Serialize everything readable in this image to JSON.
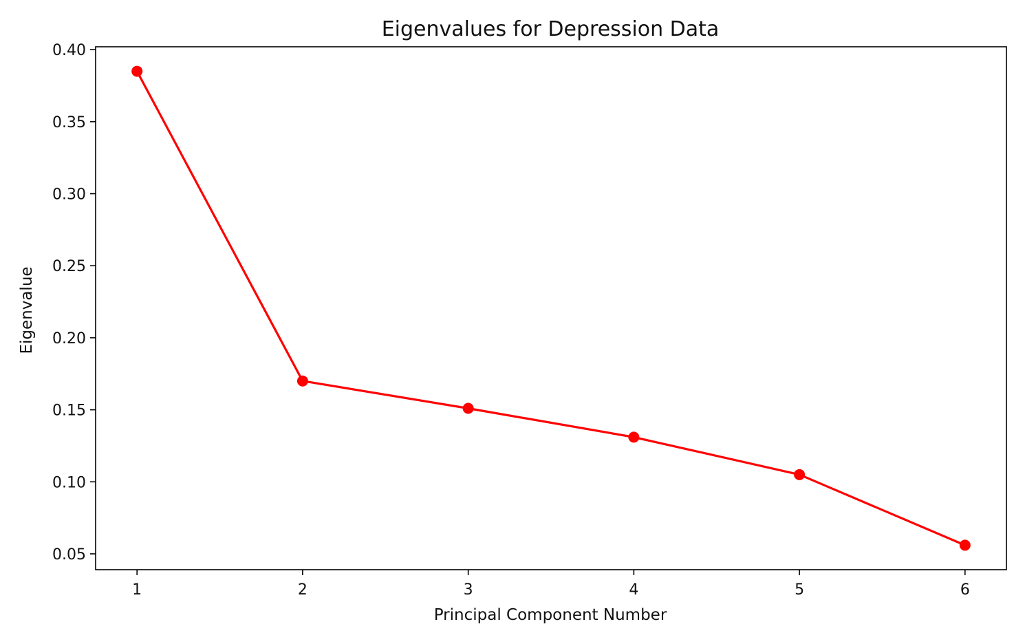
{
  "chart_data": {
    "type": "line",
    "title": "Eigenvalues for Depression Data",
    "xlabel": "Principal Component Number",
    "ylabel": "Eigenvalue",
    "x": [
      1,
      2,
      3,
      4,
      5,
      6
    ],
    "series": [
      {
        "values": [
          0.385,
          0.17,
          0.151,
          0.131,
          0.105,
          0.056
        ],
        "color": "#ff0000",
        "marker": "circle"
      }
    ],
    "xticks": [
      "1",
      "2",
      "3",
      "4",
      "5",
      "6"
    ],
    "yticks": [
      "0.05",
      "0.10",
      "0.15",
      "0.20",
      "0.25",
      "0.30",
      "0.35",
      "0.40"
    ],
    "xlim": [
      0.75,
      6.25
    ],
    "ylim": [
      0.039,
      0.402
    ],
    "grid": false,
    "legend": "none"
  }
}
